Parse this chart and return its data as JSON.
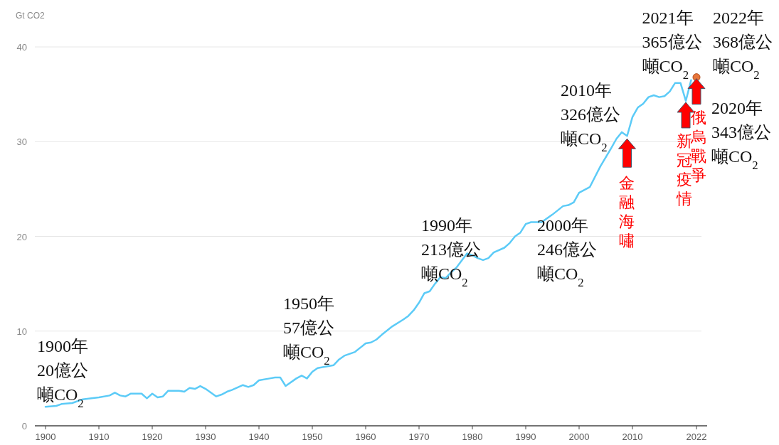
{
  "chart_data": {
    "type": "line",
    "ylabel": "Gt CO2",
    "xlim": [
      1898,
      2024
    ],
    "ylim": [
      0,
      40
    ],
    "xticks": [
      1900,
      1910,
      1920,
      1930,
      1940,
      1950,
      1960,
      1970,
      1980,
      1990,
      2000,
      2010,
      2022
    ],
    "yticks": [
      0,
      10,
      20,
      30,
      40
    ],
    "grid": "y",
    "series": [
      {
        "color": "#5ccbf7",
        "x": [
          1900,
          1902,
          1903,
          1905,
          1907,
          1910,
          1912,
          1913,
          1914,
          1915,
          1916,
          1918,
          1919,
          1920,
          1921,
          1922,
          1923,
          1925,
          1926,
          1927,
          1928,
          1929,
          1930,
          1932,
          1933,
          1934,
          1935,
          1937,
          1938,
          1939,
          1940,
          1942,
          1943,
          1944,
          1945,
          1947,
          1948,
          1949,
          1950,
          1951,
          1954,
          1955,
          1956,
          1958,
          1960,
          1961,
          1962,
          1963,
          1965,
          1967,
          1968,
          1969,
          1970,
          1971,
          1972,
          1973,
          1974,
          1975,
          1976,
          1977,
          1979,
          1980,
          1981,
          1982,
          1983,
          1984,
          1986,
          1987,
          1988,
          1989,
          1990,
          1991,
          1993,
          1995,
          1997,
          1998,
          1999,
          2000,
          2002,
          2003,
          2004,
          2006,
          2007,
          2008,
          2009,
          2010,
          2011,
          2012,
          2013,
          2014,
          2015,
          2016,
          2017,
          2018,
          2019,
          2020,
          2021
        ],
        "values": [
          2.0,
          2.1,
          2.3,
          2.4,
          2.8,
          3.0,
          3.2,
          3.5,
          3.2,
          3.1,
          3.4,
          3.4,
          2.9,
          3.4,
          3.0,
          3.1,
          3.7,
          3.7,
          3.6,
          4.0,
          3.9,
          4.2,
          3.9,
          3.1,
          3.3,
          3.6,
          3.8,
          4.3,
          4.1,
          4.3,
          4.8,
          5.0,
          5.1,
          5.1,
          4.2,
          5.0,
          5.3,
          5.0,
          5.7,
          6.1,
          6.4,
          7.0,
          7.4,
          7.8,
          8.7,
          8.8,
          9.1,
          9.6,
          10.5,
          11.2,
          11.6,
          12.2,
          13.0,
          14.0,
          14.2,
          15.0,
          15.7,
          15.6,
          16.2,
          16.7,
          18.2,
          18.0,
          17.7,
          17.5,
          17.7,
          18.3,
          18.8,
          19.3,
          20.0,
          20.4,
          21.3,
          21.5,
          21.5,
          22.3,
          23.2,
          23.3,
          23.6,
          24.6,
          25.2,
          26.3,
          27.4,
          29.3,
          30.3,
          31.0,
          30.6,
          32.6,
          33.6,
          34.0,
          34.7,
          34.9,
          34.7,
          34.8,
          35.3,
          36.2,
          36.2,
          34.3,
          36.5
        ]
      },
      {
        "type": "scatter",
        "color": "#e8763b",
        "x": [
          2022
        ],
        "values": [
          36.8
        ]
      }
    ],
    "annotations": [
      {
        "text": "1900年20億公噸CO$_{2}$",
        "x": 1900,
        "y": 2.0
      },
      {
        "text": "1950年57億公噸CO$_{2}$",
        "x": 1950,
        "y": 5.7
      },
      {
        "text": "1990年213億公噸CO$_{2}$",
        "x": 1990,
        "y": 21.3
      },
      {
        "text": "2000年246億公噸CO$_{2}$",
        "x": 2000,
        "y": 24.6
      },
      {
        "text": "2010年326億公噸CO$_{2}$",
        "x": 2010,
        "y": 32.6
      },
      {
        "text": "2020年343億公噸CO$_{2}$",
        "x": 2020,
        "y": 34.3
      },
      {
        "text": "2021年365億公噸CO$_{2}$",
        "x": 2021,
        "y": 36.5
      },
      {
        "text": "2022年368億公噸CO$_{2}$",
        "x": 2022,
        "y": 36.8
      },
      {
        "text": "金融海嘯",
        "x": 2009,
        "y": 30.6
      },
      {
        "text": "新冠疫情",
        "x": 2020,
        "y": 34.3
      },
      {
        "text": "俄烏戰爭",
        "x": 2022,
        "y": 36.8
      }
    ]
  }
}
